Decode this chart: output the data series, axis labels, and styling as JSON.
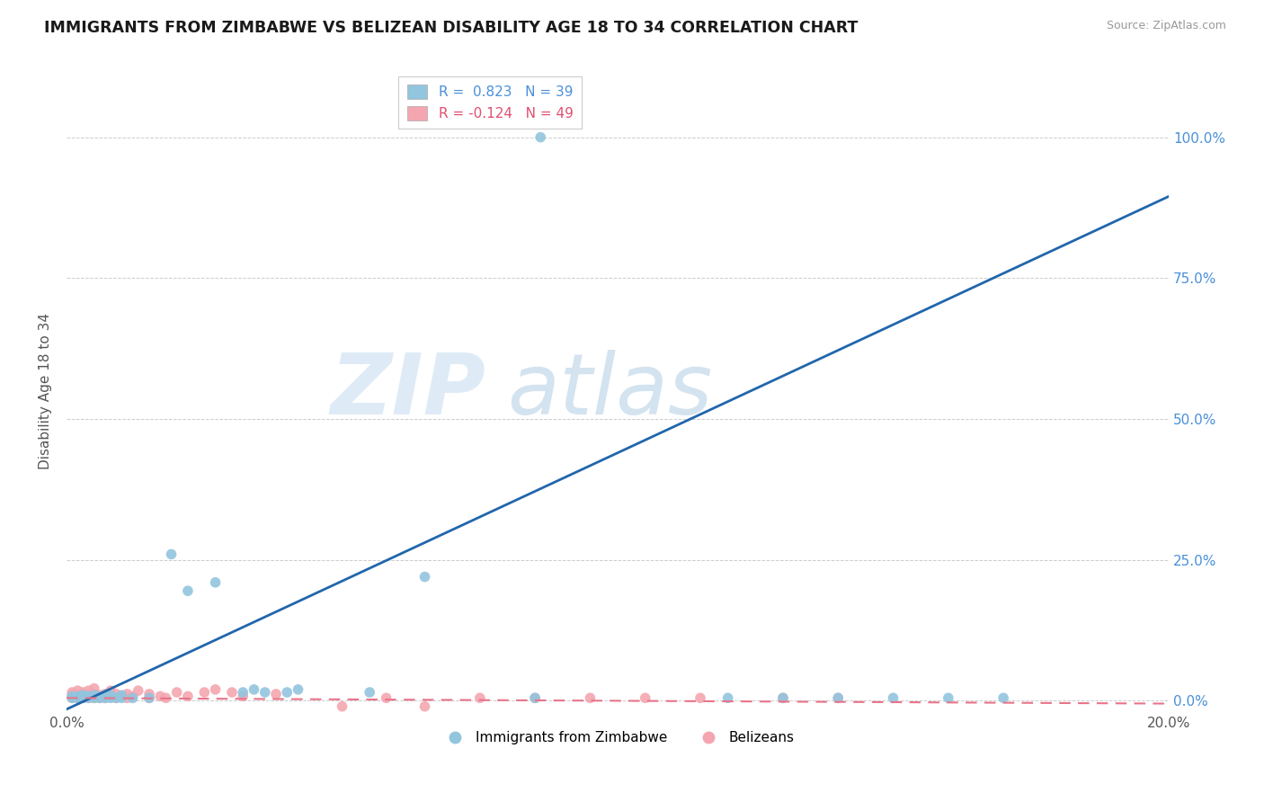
{
  "title": "IMMIGRANTS FROM ZIMBABWE VS BELIZEAN DISABILITY AGE 18 TO 34 CORRELATION CHART",
  "source": "Source: ZipAtlas.com",
  "ylabel": "Disability Age 18 to 34",
  "xlim": [
    0.0,
    0.2
  ],
  "ylim": [
    -0.02,
    1.12
  ],
  "ytick_labels": [
    "0.0%",
    "25.0%",
    "50.0%",
    "75.0%",
    "100.0%"
  ],
  "ytick_values": [
    0.0,
    0.25,
    0.5,
    0.75,
    1.0
  ],
  "xtick_values": [
    0.0,
    0.02,
    0.04,
    0.06,
    0.08,
    0.1,
    0.12,
    0.14,
    0.16,
    0.18,
    0.2
  ],
  "xtick_labels": [
    "0.0%",
    "",
    "",
    "",
    "",
    "",
    "",
    "",
    "",
    "",
    "20.0%"
  ],
  "color_zim": "#92c5de",
  "color_bel": "#f4a6b0",
  "trendline_zim_color": "#2166ac",
  "trendline_bel_color": "#e8748a",
  "trendline_zim_slope": 4.55,
  "trendline_zim_intercept": -0.015,
  "trendline_bel_slope": -0.05,
  "trendline_bel_intercept": 0.005,
  "scatter_zim": [
    [
      0.001,
      0.005
    ],
    [
      0.001,
      0.008
    ],
    [
      0.002,
      0.005
    ],
    [
      0.002,
      0.008
    ],
    [
      0.003,
      0.005
    ],
    [
      0.003,
      0.01
    ],
    [
      0.004,
      0.005
    ],
    [
      0.004,
      0.008
    ],
    [
      0.005,
      0.005
    ],
    [
      0.005,
      0.01
    ],
    [
      0.006,
      0.005
    ],
    [
      0.006,
      0.008
    ],
    [
      0.007,
      0.005
    ],
    [
      0.007,
      0.01
    ],
    [
      0.008,
      0.005
    ],
    [
      0.008,
      0.01
    ],
    [
      0.009,
      0.005
    ],
    [
      0.01,
      0.005
    ],
    [
      0.01,
      0.01
    ],
    [
      0.012,
      0.005
    ],
    [
      0.015,
      0.005
    ],
    [
      0.019,
      0.26
    ],
    [
      0.022,
      0.195
    ],
    [
      0.027,
      0.21
    ],
    [
      0.032,
      0.015
    ],
    [
      0.034,
      0.02
    ],
    [
      0.036,
      0.015
    ],
    [
      0.04,
      0.015
    ],
    [
      0.042,
      0.02
    ],
    [
      0.055,
      0.015
    ],
    [
      0.065,
      0.22
    ],
    [
      0.085,
      0.005
    ],
    [
      0.086,
      1.0
    ],
    [
      0.12,
      0.005
    ],
    [
      0.13,
      0.005
    ],
    [
      0.14,
      0.005
    ],
    [
      0.15,
      0.005
    ],
    [
      0.16,
      0.005
    ],
    [
      0.17,
      0.005
    ]
  ],
  "scatter_bel": [
    [
      0.001,
      0.005
    ],
    [
      0.001,
      0.01
    ],
    [
      0.001,
      0.015
    ],
    [
      0.002,
      0.005
    ],
    [
      0.002,
      0.01
    ],
    [
      0.002,
      0.018
    ],
    [
      0.003,
      0.005
    ],
    [
      0.003,
      0.01
    ],
    [
      0.003,
      0.015
    ],
    [
      0.004,
      0.005
    ],
    [
      0.004,
      0.01
    ],
    [
      0.004,
      0.018
    ],
    [
      0.005,
      0.005
    ],
    [
      0.005,
      0.012
    ],
    [
      0.005,
      0.022
    ],
    [
      0.006,
      0.005
    ],
    [
      0.006,
      0.01
    ],
    [
      0.007,
      0.005
    ],
    [
      0.007,
      0.012
    ],
    [
      0.008,
      0.008
    ],
    [
      0.008,
      0.018
    ],
    [
      0.009,
      0.005
    ],
    [
      0.009,
      0.012
    ],
    [
      0.01,
      0.008
    ],
    [
      0.011,
      0.005
    ],
    [
      0.011,
      0.012
    ],
    [
      0.012,
      0.008
    ],
    [
      0.013,
      0.018
    ],
    [
      0.015,
      0.005
    ],
    [
      0.015,
      0.012
    ],
    [
      0.017,
      0.008
    ],
    [
      0.018,
      0.005
    ],
    [
      0.02,
      0.015
    ],
    [
      0.022,
      0.008
    ],
    [
      0.025,
      0.015
    ],
    [
      0.027,
      0.02
    ],
    [
      0.03,
      0.015
    ],
    [
      0.032,
      0.008
    ],
    [
      0.038,
      0.012
    ],
    [
      0.05,
      -0.01
    ],
    [
      0.058,
      0.005
    ],
    [
      0.065,
      -0.01
    ],
    [
      0.075,
      0.005
    ],
    [
      0.085,
      0.005
    ],
    [
      0.095,
      0.005
    ],
    [
      0.105,
      0.005
    ],
    [
      0.115,
      0.005
    ],
    [
      0.13,
      0.005
    ],
    [
      0.14,
      0.005
    ]
  ]
}
